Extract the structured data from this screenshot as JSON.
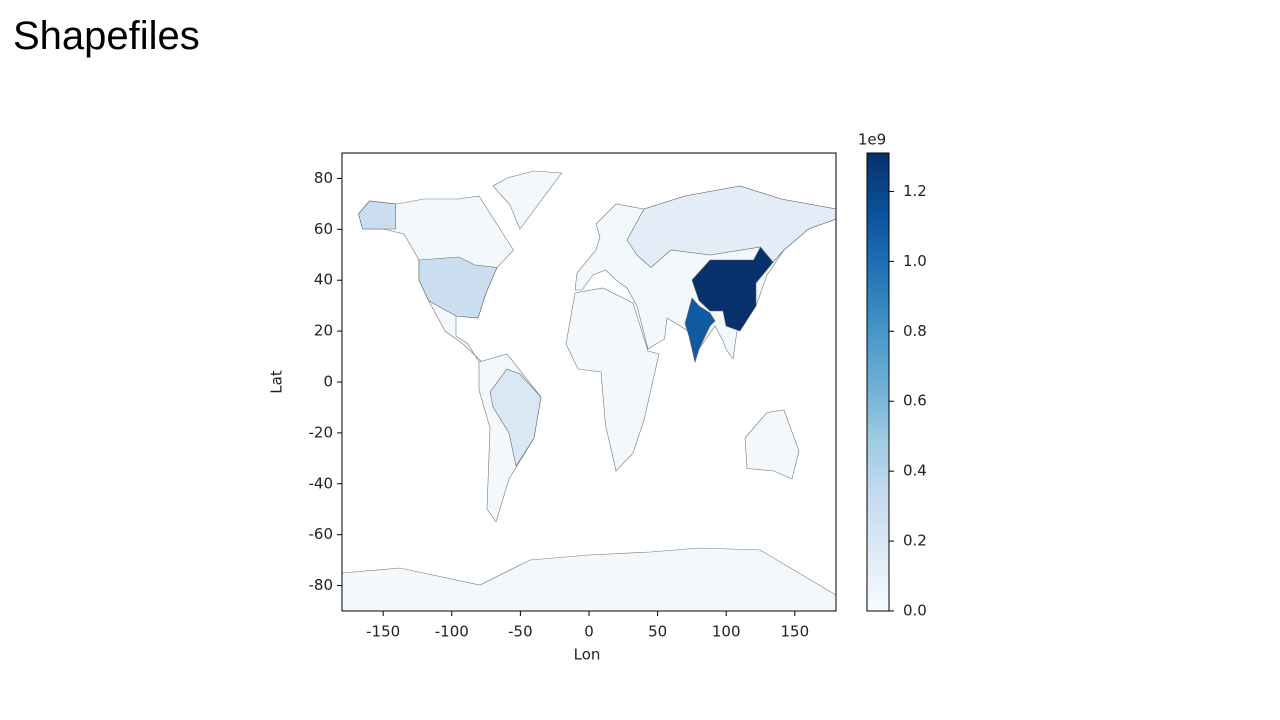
{
  "title": "Shapefiles",
  "chart_data": {
    "type": "choropleth",
    "xlabel": "Lon",
    "ylabel": "Lat",
    "xlim": [
      -180,
      180
    ],
    "ylim": [
      -90,
      90
    ],
    "xticks": [
      -150,
      -100,
      -50,
      0,
      50,
      100,
      150
    ],
    "yticks": [
      -80,
      -60,
      -40,
      -20,
      0,
      20,
      40,
      60,
      80
    ],
    "colormap": "Blues",
    "colorbar": {
      "offset_label": "1e9",
      "lim": [
        0,
        1.31
      ],
      "ticks": [
        {
          "value": 0,
          "label": "0.0"
        },
        0.2,
        0.4,
        0.6,
        0.8,
        {
          "value": 1,
          "label": "1.0"
        },
        1.2
      ]
    },
    "values": [
      1.31,
      1.1,
      0.3,
      0.14,
      0.19
    ]
  }
}
